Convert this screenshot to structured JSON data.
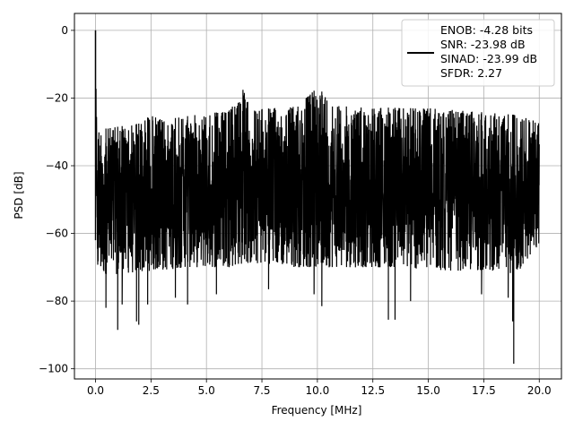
{
  "chart_data": {
    "type": "line",
    "title": "",
    "xlabel": "Frequency [MHz]",
    "ylabel": "PSD [dB]",
    "xlim": [
      -0.95,
      21.0
    ],
    "ylim": [
      -103,
      5
    ],
    "xticks": [
      0.0,
      2.5,
      5.0,
      7.5,
      10.0,
      12.5,
      15.0,
      17.5,
      20.0
    ],
    "xtick_labels": [
      "0.0",
      "2.5",
      "5.0",
      "7.5",
      "10.0",
      "12.5",
      "15.0",
      "17.5",
      "20.0"
    ],
    "yticks": [
      0,
      -20,
      -40,
      -60,
      -80,
      -100
    ],
    "ytick_labels": [
      "0",
      "−20",
      "−40",
      "−60",
      "−80",
      "−100"
    ],
    "grid": true,
    "legend_placement": "top-right",
    "series": [
      {
        "name": "ENOB: -4.28 bits\nSNR: -23.98 dB\nSINAD: -23.99 dB\nSFDR: 2.27",
        "legend_lines": [
          "ENOB: -4.28 bits",
          "SNR: -23.98 dB",
          "SINAD: -23.99 dB",
          "SFDR: 2.27"
        ],
        "color": "#000000",
        "x": [
          0.0,
          0.05,
          0.1,
          0.5,
          1.0,
          2.0,
          2.5,
          3.0,
          4.0,
          5.0,
          6.0,
          6.6,
          7.0,
          8.0,
          9.0,
          10.0,
          11.0,
          12.0,
          13.0,
          14.0,
          15.0,
          16.0,
          17.0,
          18.0,
          19.0,
          20.0
        ],
        "upper": [
          0,
          -25,
          -29,
          -29,
          -28.5,
          -27.5,
          -25,
          -26.5,
          -25.5,
          -24.5,
          -24,
          -16.5,
          -23.5,
          -23,
          -22.5,
          -17,
          -22.5,
          -22.5,
          -22.8,
          -23,
          -23,
          -23.5,
          -24,
          -24.5,
          -25,
          -27
        ],
        "lower": [
          -62,
          -70,
          -72,
          -72,
          -72,
          -71.5,
          -71,
          -71,
          -70,
          -70,
          -70,
          -69,
          -69,
          -69,
          -70,
          -70,
          -70,
          -70,
          -70,
          -70,
          -71,
          -71,
          -71,
          -71,
          -72,
          -64
        ],
        "dips": [
          {
            "x": 0.47,
            "y": -82
          },
          {
            "x": 1.0,
            "y": -88.5
          },
          {
            "x": 1.2,
            "y": -81
          },
          {
            "x": 1.85,
            "y": -86
          },
          {
            "x": 1.95,
            "y": -87
          },
          {
            "x": 2.35,
            "y": -81
          },
          {
            "x": 3.6,
            "y": -79
          },
          {
            "x": 4.15,
            "y": -81
          },
          {
            "x": 5.45,
            "y": -78
          },
          {
            "x": 7.8,
            "y": -76.5
          },
          {
            "x": 9.85,
            "y": -78
          },
          {
            "x": 10.2,
            "y": -81.5
          },
          {
            "x": 13.2,
            "y": -85.5
          },
          {
            "x": 13.5,
            "y": -85.5
          },
          {
            "x": 14.2,
            "y": -80
          },
          {
            "x": 17.4,
            "y": -78
          },
          {
            "x": 18.6,
            "y": -79
          },
          {
            "x": 18.8,
            "y": -86
          },
          {
            "x": 18.85,
            "y": -98.5
          }
        ]
      }
    ]
  }
}
